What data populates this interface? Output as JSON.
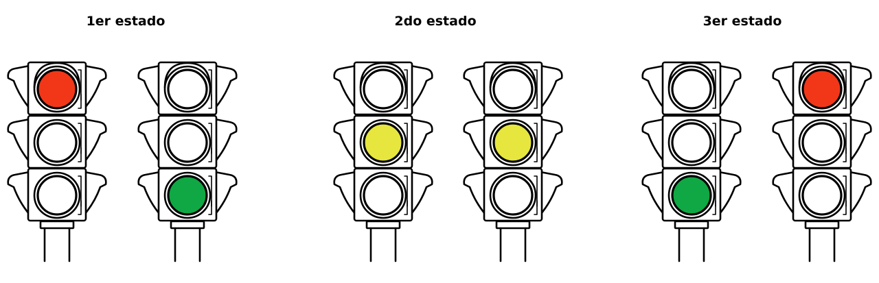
{
  "colors": {
    "red": "#f23718",
    "yellow": "#e6e63e",
    "green": "#0fa844",
    "off": "#ffffff"
  },
  "states": [
    {
      "title": "1er estado",
      "lights": [
        {
          "top": "red",
          "middle": "off",
          "bottom": "off"
        },
        {
          "top": "off",
          "middle": "off",
          "bottom": "green"
        }
      ]
    },
    {
      "title": "2do estado",
      "lights": [
        {
          "top": "off",
          "middle": "yellow",
          "bottom": "off"
        },
        {
          "top": "off",
          "middle": "yellow",
          "bottom": "off"
        }
      ]
    },
    {
      "title": "3er estado",
      "lights": [
        {
          "top": "off",
          "middle": "off",
          "bottom": "green"
        },
        {
          "top": "red",
          "middle": "off",
          "bottom": "off"
        }
      ]
    }
  ]
}
